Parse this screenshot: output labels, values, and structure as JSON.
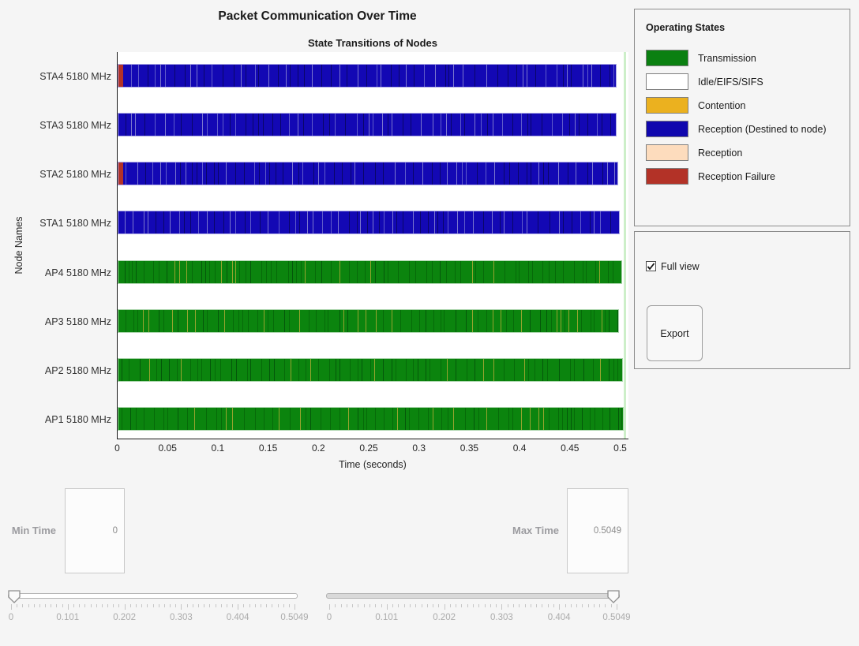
{
  "header": {
    "title": "Packet Communication Over Time",
    "subtitle": "State Transitions of Nodes"
  },
  "axes": {
    "xlabel": "Time (seconds)",
    "ylabel": "Node Names",
    "xticks": [
      "0",
      "0.05",
      "0.1",
      "0.15",
      "0.2",
      "0.25",
      "0.3",
      "0.35",
      "0.4",
      "0.45",
      "0.5"
    ],
    "x_range": [
      0,
      0.5049
    ]
  },
  "colors": {
    "transmission": "#0B840E",
    "idle": "#FFFFFF",
    "contention": "#EBB11F",
    "reception_destined": "#1308B4",
    "reception": "#FDDCBD",
    "reception_failure": "#B23228",
    "max_time_line": "#CDEFC9",
    "legend_transmission": "#0B8011",
    "legend_reception_destined": "#1007AE",
    "legend_reception_failure": "#B33227"
  },
  "chart_data": {
    "type": "state-timeline horizontal bars",
    "title": "State Transitions of Nodes",
    "xlabel": "Time (seconds)",
    "ylabel": "Node Names",
    "xlim": [
      0,
      0.5049
    ],
    "max_time_marker": 0.5049,
    "categories": [
      "STA4 5180 MHz",
      "STA3 5180 MHz",
      "STA2 5180 MHz",
      "STA1 5180 MHz",
      "AP4 5180 MHz",
      "AP3 5180 MHz",
      "AP2 5180 MHz",
      "AP1 5180 MHz"
    ],
    "rows": [
      {
        "label": "STA4 5180 MHz",
        "state": "reception_destined",
        "end_time": 0.4964,
        "lead_state": "reception_failure",
        "lead_duration": 0.0047,
        "seed": 3
      },
      {
        "label": "STA3 5180 MHz",
        "state": "reception_destined",
        "end_time": 0.4957,
        "lead_state": null,
        "lead_duration": 0,
        "seed": 5
      },
      {
        "label": "STA2 5180 MHz",
        "state": "reception_destined",
        "end_time": 0.4976,
        "lead_state": "reception_failure",
        "lead_duration": 0.0047,
        "seed": 7
      },
      {
        "label": "STA1 5180 MHz",
        "state": "reception_destined",
        "end_time": 0.4992,
        "lead_state": null,
        "lead_duration": 0,
        "seed": 11
      },
      {
        "label": "AP4 5180 MHz",
        "state": "transmission",
        "end_time": 0.5016,
        "lead_state": null,
        "lead_duration": 0,
        "seed": 13
      },
      {
        "label": "AP3 5180 MHz",
        "state": "transmission",
        "end_time": 0.4985,
        "lead_state": null,
        "lead_duration": 0,
        "seed": 17
      },
      {
        "label": "AP2 5180 MHz",
        "state": "transmission",
        "end_time": 0.5027,
        "lead_state": null,
        "lead_duration": 0,
        "seed": 19
      },
      {
        "label": "AP1 5180 MHz",
        "state": "transmission",
        "end_time": 0.5035,
        "lead_state": null,
        "lead_duration": 0,
        "seed": 23
      }
    ]
  },
  "legend": {
    "title": "Operating States",
    "items": [
      {
        "label": "Transmission",
        "color": "#0B8011"
      },
      {
        "label": "Idle/EIFS/SIFS",
        "color": "#FFFFFF"
      },
      {
        "label": "Contention",
        "color": "#EBB11F"
      },
      {
        "label": "Reception (Destined to node)",
        "color": "#1007AE"
      },
      {
        "label": "Reception",
        "color": "#FDDCBD"
      },
      {
        "label": "Reception Failure",
        "color": "#B33227"
      }
    ]
  },
  "controls": {
    "full_view_label": "Full view",
    "full_view_checked": true,
    "export_label": "Export"
  },
  "time_range": {
    "min": {
      "label": "Min Time",
      "value": "0"
    },
    "max": {
      "label": "Max Time",
      "value": "0.5049"
    }
  },
  "sliders": {
    "tick_labels": [
      "0",
      "0.101",
      "0.202",
      "0.303",
      "0.404",
      "0.5049"
    ],
    "min_slider_value": 0,
    "max_slider_value": 0.5049
  }
}
